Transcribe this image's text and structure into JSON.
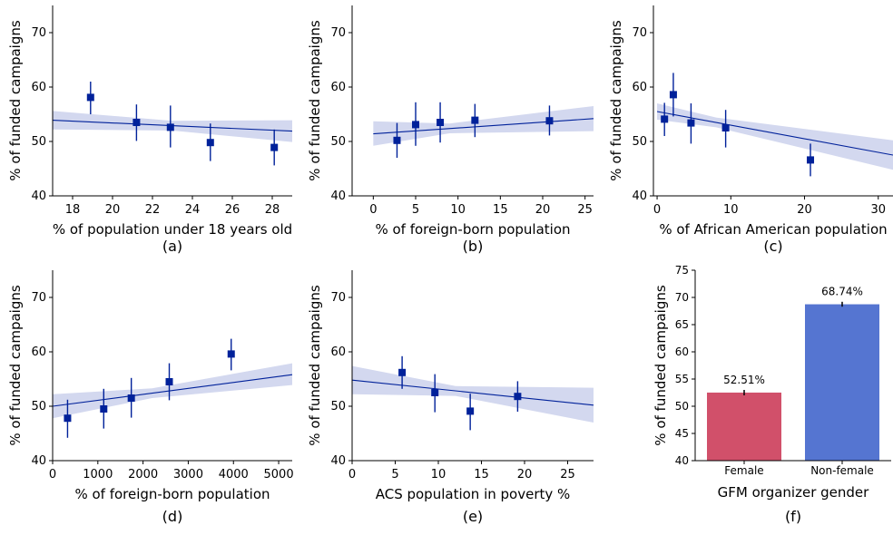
{
  "chart_data": [
    {
      "type": "scatter",
      "panel_label": "(a)",
      "xlabel": "% of population under 18 years old",
      "ylabel": "% of funded campaigns",
      "xlim": [
        17,
        29
      ],
      "ylim": [
        40,
        75
      ],
      "xticks": [
        18,
        20,
        22,
        24,
        26,
        28
      ],
      "yticks": [
        40,
        50,
        60,
        70
      ],
      "points": [
        {
          "x": 18.9,
          "y": 58.1,
          "err": [
            55.0,
            61.0
          ]
        },
        {
          "x": 21.2,
          "y": 53.5,
          "err": [
            50.1,
            56.8
          ]
        },
        {
          "x": 22.9,
          "y": 52.6,
          "err": [
            48.9,
            56.6
          ]
        },
        {
          "x": 24.9,
          "y": 49.8,
          "err": [
            46.4,
            53.3
          ]
        },
        {
          "x": 28.1,
          "y": 48.9,
          "err": [
            45.6,
            52.2
          ]
        }
      ],
      "fit": [
        {
          "x": 17,
          "y": 53.9
        },
        {
          "x": 29,
          "y": 51.9
        }
      ],
      "band": [
        {
          "x": 17,
          "lo": 52.2,
          "hi": 55.6
        },
        {
          "x": 23,
          "lo": 52.0,
          "hi": 53.8
        },
        {
          "x": 29,
          "lo": 49.9,
          "hi": 53.9
        }
      ]
    },
    {
      "type": "scatter",
      "panel_label": "(b)",
      "xlabel": "% of foreign-born population",
      "ylabel": "% of funded campaigns",
      "xlim": [
        -2.5,
        26
      ],
      "ylim": [
        40,
        75
      ],
      "xticks": [
        0,
        5,
        10,
        15,
        20,
        25
      ],
      "yticks": [
        40,
        50,
        60,
        70
      ],
      "points": [
        {
          "x": 2.8,
          "y": 50.2,
          "err": [
            47.0,
            53.4
          ]
        },
        {
          "x": 5.0,
          "y": 53.1,
          "err": [
            49.2,
            57.2
          ]
        },
        {
          "x": 7.9,
          "y": 53.5,
          "err": [
            49.8,
            57.2
          ]
        },
        {
          "x": 12.0,
          "y": 53.9,
          "err": [
            50.8,
            56.9
          ]
        },
        {
          "x": 20.8,
          "y": 53.8,
          "err": [
            51.1,
            56.6
          ]
        }
      ],
      "fit": [
        {
          "x": 0,
          "y": 51.4
        },
        {
          "x": 26,
          "y": 54.2
        }
      ],
      "band": [
        {
          "x": 0,
          "lo": 49.2,
          "hi": 53.7
        },
        {
          "x": 9,
          "lo": 51.5,
          "hi": 53.3
        },
        {
          "x": 26,
          "lo": 51.9,
          "hi": 56.5
        }
      ]
    },
    {
      "type": "scatter",
      "panel_label": "(c)",
      "xlabel": "% of African American population",
      "ylabel": "% of funded campaigns",
      "xlim": [
        -0.5,
        32
      ],
      "ylim": [
        40,
        75
      ],
      "xticks": [
        0,
        10,
        20,
        30
      ],
      "yticks": [
        40,
        50,
        60,
        70
      ],
      "points": [
        {
          "x": 1.0,
          "y": 54.1,
          "err": [
            51.0,
            57.1
          ]
        },
        {
          "x": 2.2,
          "y": 58.6,
          "err": [
            54.6,
            62.6
          ]
        },
        {
          "x": 4.6,
          "y": 53.4,
          "err": [
            49.6,
            57.0
          ]
        },
        {
          "x": 9.3,
          "y": 52.5,
          "err": [
            48.9,
            55.8
          ]
        },
        {
          "x": 20.8,
          "y": 46.6,
          "err": [
            43.6,
            49.6
          ]
        }
      ],
      "fit": [
        {
          "x": 0,
          "y": 55.5
        },
        {
          "x": 32,
          "y": 47.5
        }
      ],
      "band": [
        {
          "x": 0,
          "lo": 54.0,
          "hi": 57.0
        },
        {
          "x": 8,
          "lo": 52.6,
          "hi": 54.4
        },
        {
          "x": 32,
          "lo": 44.8,
          "hi": 50.2
        }
      ]
    },
    {
      "type": "scatter",
      "panel_label": "(d)",
      "xlabel": "% of foreign-born population",
      "ylabel": "% of funded campaigns",
      "xlim": [
        0,
        5300
      ],
      "ylim": [
        40,
        75
      ],
      "xticks": [
        0,
        1000,
        2000,
        3000,
        4000,
        5000
      ],
      "yticks": [
        40,
        50,
        60,
        70
      ],
      "points": [
        {
          "x": 330,
          "y": 47.8,
          "err": [
            44.2,
            51.2
          ]
        },
        {
          "x": 1130,
          "y": 49.5,
          "err": [
            45.9,
            53.2
          ]
        },
        {
          "x": 1740,
          "y": 51.5,
          "err": [
            47.9,
            55.2
          ]
        },
        {
          "x": 2580,
          "y": 54.5,
          "err": [
            51.1,
            57.9
          ]
        },
        {
          "x": 3950,
          "y": 59.6,
          "err": [
            56.6,
            62.4
          ]
        }
      ],
      "fit": [
        {
          "x": 0,
          "y": 50.0
        },
        {
          "x": 5300,
          "y": 55.8
        }
      ],
      "band": [
        {
          "x": 0,
          "lo": 47.8,
          "hi": 52.2
        },
        {
          "x": 2200,
          "lo": 51.5,
          "hi": 53.3
        },
        {
          "x": 5300,
          "lo": 53.9,
          "hi": 57.9
        }
      ]
    },
    {
      "type": "scatter",
      "panel_label": "(e)",
      "xlabel": "ACS population in poverty %",
      "ylabel": "% of funded campaigns",
      "xlim": [
        0,
        28
      ],
      "ylim": [
        40,
        75
      ],
      "xticks": [
        0,
        5,
        10,
        15,
        20,
        25
      ],
      "yticks": [
        40,
        50,
        60,
        70
      ],
      "points": [
        {
          "x": 5.8,
          "y": 56.2,
          "err": [
            53.2,
            59.2
          ]
        },
        {
          "x": 9.6,
          "y": 52.5,
          "err": [
            48.9,
            55.9
          ]
        },
        {
          "x": 13.7,
          "y": 49.1,
          "err": [
            45.6,
            52.3
          ]
        },
        {
          "x": 19.2,
          "y": 51.8,
          "err": [
            49.0,
            54.6
          ]
        }
      ],
      "fit": [
        {
          "x": 0,
          "y": 54.8
        },
        {
          "x": 28,
          "y": 50.2
        }
      ],
      "band": [
        {
          "x": 0,
          "lo": 52.2,
          "hi": 57.4
        },
        {
          "x": 12,
          "lo": 51.9,
          "hi": 53.7
        },
        {
          "x": 28,
          "lo": 47.0,
          "hi": 53.4
        }
      ]
    },
    {
      "type": "bar",
      "panel_label": "(f)",
      "xlabel": "GFM organizer gender",
      "ylabel": "% of funded campaigns",
      "ylim": [
        40,
        75
      ],
      "yticks": [
        40,
        45,
        50,
        55,
        60,
        65,
        70,
        75
      ],
      "categories": [
        "Female",
        "Non-female"
      ],
      "values": [
        52.51,
        68.74
      ],
      "value_labels": [
        "52.51%",
        "68.74%"
      ],
      "errors": [
        [
          52.0,
          53.0
        ],
        [
          68.3,
          69.2
        ]
      ],
      "colors": [
        "#d1506a",
        "#5575d1"
      ]
    }
  ],
  "colors": {
    "marker": "#00219a",
    "fit_line": "#00219a",
    "band": "#d3d8ef"
  }
}
